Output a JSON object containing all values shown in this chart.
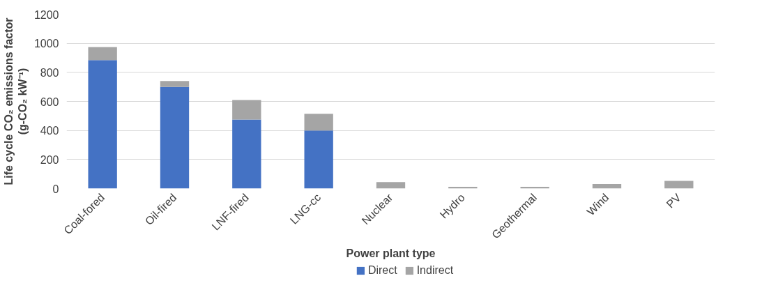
{
  "chart_data": {
    "type": "bar",
    "stacked": true,
    "xlabel": "Power plant type",
    "ylabel": "Life cycle CO₂ emissions factor\n(g-CO₂ kW⁻¹)",
    "categories": [
      "Coal-fored",
      "Oil-fired",
      "LNF-fired",
      "LNG-cc",
      "Nuclear",
      "Hydro",
      "Geothermal",
      "Wind",
      "PV"
    ],
    "series": [
      {
        "name": "Direct",
        "color": "#4472c4",
        "values": [
          885,
          700,
          475,
          400,
          0,
          0,
          0,
          0,
          0
        ]
      },
      {
        "name": "Indirect",
        "color": "#a5a5a5",
        "values": [
          90,
          40,
          135,
          115,
          44,
          12,
          12,
          31,
          53
        ]
      }
    ],
    "ylim": [
      0,
      1200
    ],
    "yticks": [
      0,
      200,
      400,
      600,
      800,
      1000,
      1200
    ],
    "grid": "y",
    "legend": "bottom"
  }
}
